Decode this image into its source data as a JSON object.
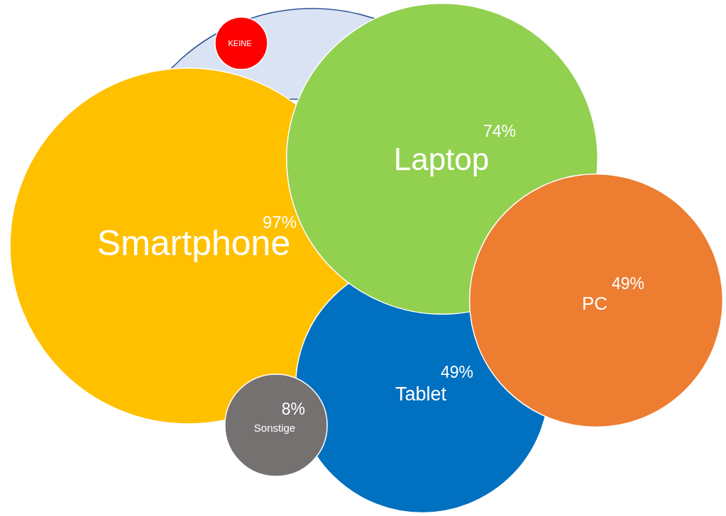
{
  "chart_data": {
    "type": "other",
    "categories": [
      "Smartphone",
      "Laptop",
      "PC",
      "Tablet",
      "Sonstige",
      "KEINE"
    ],
    "values": [
      97,
      74,
      49,
      49,
      8,
      null
    ],
    "value_labels": [
      "97%",
      "74%",
      "49%",
      "49%",
      "8%",
      null
    ],
    "colors": [
      "#ffc000",
      "#92d050",
      "#ed7d31",
      "#0070c0",
      "#767171",
      "#ff0000"
    ]
  }
}
